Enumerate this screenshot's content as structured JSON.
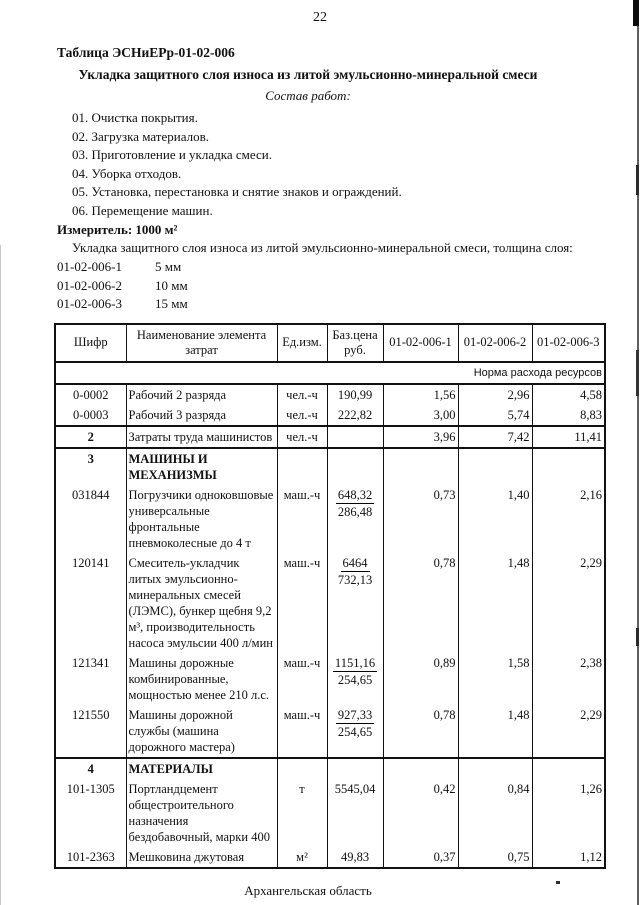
{
  "colors": {
    "ink": "#111111",
    "paper": "#ffffff"
  },
  "page": {
    "number": "22",
    "footer": "Архангельская область"
  },
  "doc": {
    "table_label": "Таблица  ЭСНиЕРр-01-02-006",
    "title": "Укладка защитного слоя износа из литой эмульсионно-минеральной смеси",
    "works_heading": "Состав работ:",
    "works": [
      "01. Очистка покрытия.",
      "02. Загрузка материалов.",
      "03. Приготовление и укладка смеси.",
      "04. Уборка отходов.",
      "05. Установка, перестановка и снятие знаков и ограждений.",
      "06. Перемещение машин."
    ],
    "measure_label": "Измеритель: 1000 м²",
    "variants_intro": "Укладка защитного слоя износа из литой эмульсионно-минеральной смеси, толщина слоя:",
    "variants": [
      {
        "code": "01-02-006-1",
        "value": "5 мм"
      },
      {
        "code": "01-02-006-2",
        "value": "10 мм"
      },
      {
        "code": "01-02-006-3",
        "value": "15 мм"
      }
    ]
  },
  "table": {
    "headers": [
      "Шифр",
      "Наименование элемента затрат",
      "Ед.изм.",
      "Баз.цена руб.",
      "01-02-006-1",
      "01-02-006-2",
      "01-02-006-3"
    ],
    "subheader": "Норма расхода ресурсов",
    "rows": [
      {
        "code": "0-0002",
        "name": "Рабочий 2 разряда",
        "unit": "чел.-ч",
        "price": "190,99",
        "v1": "1,56",
        "v2": "2,96",
        "v3": "4,58"
      },
      {
        "code": "0-0003",
        "name": "Рабочий 3 разряда",
        "unit": "чел.-ч",
        "price": "222,82",
        "v1": "3,00",
        "v2": "5,74",
        "v3": "8,83",
        "rule": true
      },
      {
        "code": "2",
        "code_bold": true,
        "name": "Затраты труда машинистов",
        "unit": "чел.-ч",
        "price": "",
        "v1": "3,96",
        "v2": "7,42",
        "v3": "11,41",
        "rule": true
      },
      {
        "code": "3",
        "code_bold": true,
        "name": "МАШИНЫ И МЕХАНИЗМЫ",
        "name_bold": true
      },
      {
        "code": "031844",
        "name": "Погрузчики одноковшовые универсальные фронтальные пневмоколесные до 4 т",
        "unit": "маш.-ч",
        "price": "648,32",
        "price2": "286,48",
        "v1": "0,73",
        "v2": "1,40",
        "v3": "2,16"
      },
      {
        "code": "120141",
        "name": "Смеситель-укладчик литых эмульсионно-минеральных смесей (ЛЭМС), бункер щебня 9,2 м³, производительность насоса эмульсии 400 л/мин",
        "unit": "маш.-ч",
        "price": "6464",
        "price2": "732,13",
        "v1": "0,78",
        "v2": "1,48",
        "v3": "2,29"
      },
      {
        "code": "121341",
        "name": "Машины дорожные комбинированные, мощностью менее 210 л.с.",
        "unit": "маш.-ч",
        "price": "1151,16",
        "price2": "254,65",
        "v1": "0,89",
        "v2": "1,58",
        "v3": "2,38"
      },
      {
        "code": "121550",
        "name": "Машины дорожной службы (машина дорожного мастера)",
        "unit": "маш.-ч",
        "price": "927,33",
        "price2": "254,65",
        "v1": "0,78",
        "v2": "1,48",
        "v3": "2,29",
        "rule": true
      },
      {
        "code": "4",
        "code_bold": true,
        "name": "МАТЕРИАЛЫ",
        "name_bold": true
      },
      {
        "code": "101-1305",
        "name": "Портландцемент общестроительного назначения бездобавочный, марки 400",
        "unit": "т",
        "price": "5545,04",
        "v1": "0,42",
        "v2": "0,84",
        "v3": "1,26"
      },
      {
        "code": "101-2363",
        "name": "Мешковина джутовая",
        "unit": "м²",
        "price": "49,83",
        "v1": "0,37",
        "v2": "0,75",
        "v3": "1,12"
      }
    ]
  }
}
